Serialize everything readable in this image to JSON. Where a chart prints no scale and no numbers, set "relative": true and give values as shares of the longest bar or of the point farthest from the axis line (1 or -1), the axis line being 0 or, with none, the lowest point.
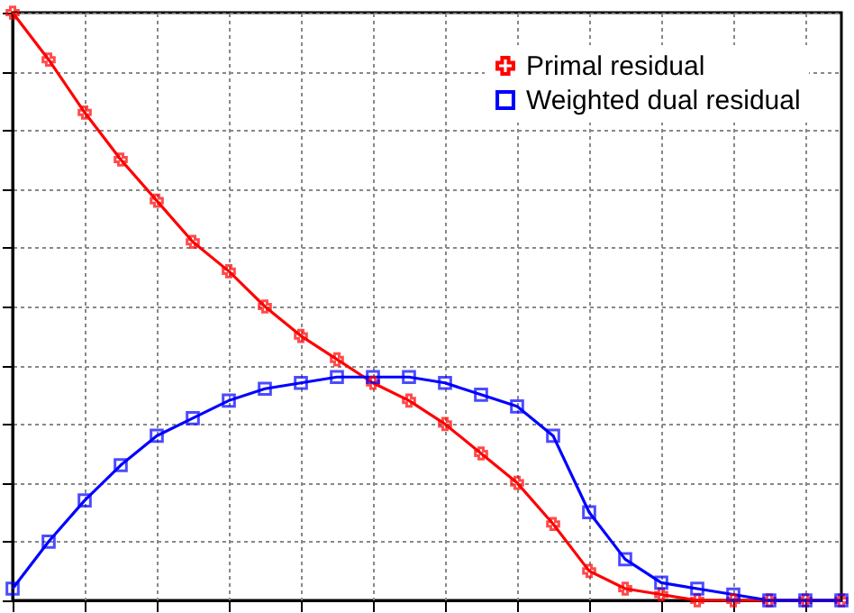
{
  "chart_data": {
    "type": "line",
    "relative": true,
    "categories": [
      null,
      null,
      null,
      null,
      null,
      null,
      null,
      null,
      null,
      null,
      null,
      null,
      null,
      null,
      null,
      null,
      null,
      null,
      null,
      null,
      null,
      null,
      null,
      null
    ],
    "tick_labels": false,
    "grid": true,
    "legend": "top right",
    "line_style": "solid",
    "series": [
      {
        "name": "Primal residual",
        "color": "#ff0000",
        "marker": "cross",
        "values": [
          1.0,
          0.92,
          0.83,
          0.75,
          0.68,
          0.61,
          0.56,
          0.5,
          0.45,
          0.41,
          0.37,
          0.34,
          0.3,
          0.25,
          0.2,
          0.13,
          0.05,
          0.02,
          0.01,
          0,
          0,
          0,
          0,
          0
        ]
      },
      {
        "name": "Weighted dual residual",
        "color": "#0000ff",
        "marker": "square",
        "values": [
          0.02,
          0.1,
          0.17,
          0.23,
          0.28,
          0.31,
          0.34,
          0.36,
          0.37,
          0.38,
          0.38,
          0.38,
          0.37,
          0.35,
          0.33,
          0.28,
          0.15,
          0.07,
          0.03,
          0.02,
          0.01,
          0,
          0,
          0
        ]
      }
    ]
  }
}
